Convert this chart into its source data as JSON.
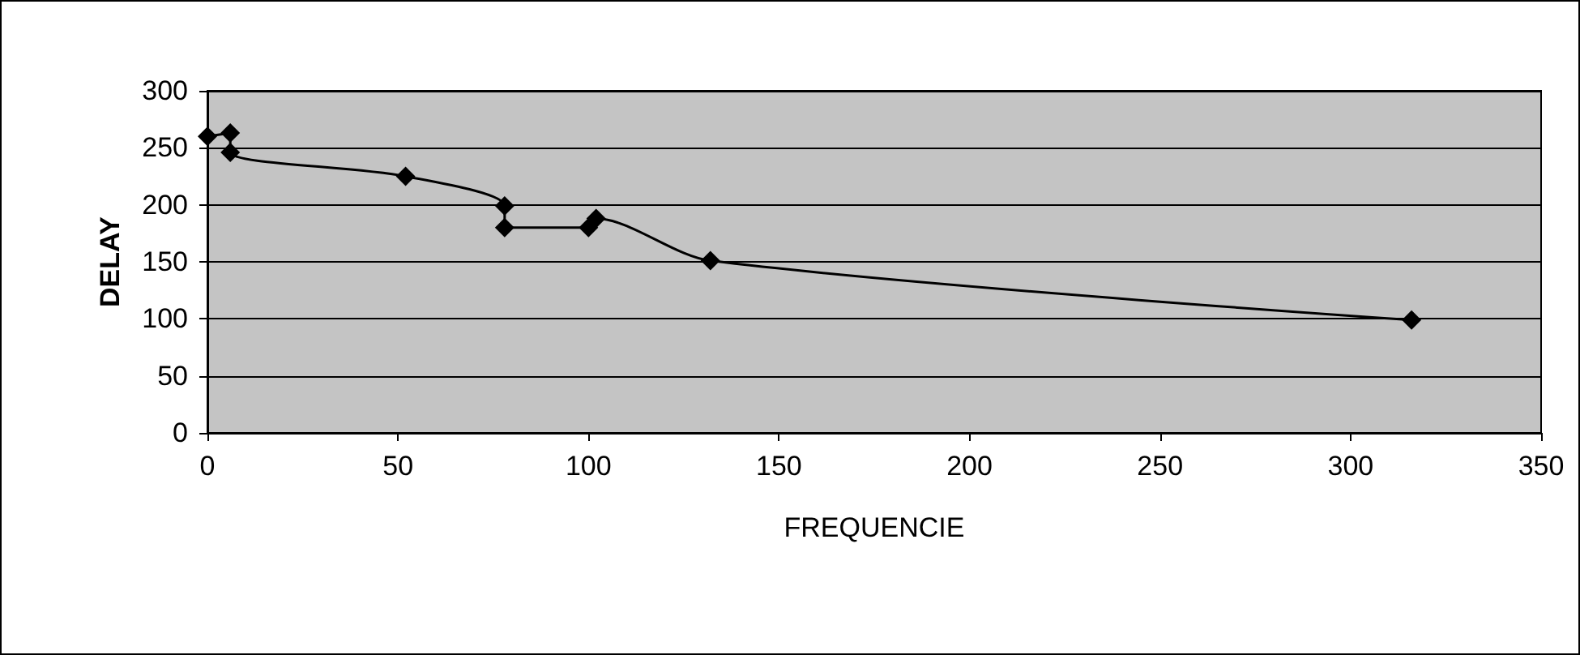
{
  "chart_data": {
    "type": "line",
    "xlabel": "FREQUENCIE",
    "ylabel": "DELAY",
    "series": [
      {
        "color": "#000000",
        "x": [
          0,
          6,
          6,
          52,
          78,
          78,
          100,
          102,
          132,
          316
        ],
        "values": [
          260,
          263,
          246,
          225,
          199,
          180,
          180,
          188,
          151,
          99
        ]
      }
    ],
    "xlim": [
      0,
      350
    ],
    "xticks": [
      0,
      50,
      100,
      150,
      200,
      250,
      300,
      350
    ],
    "ylim": [
      0,
      300
    ],
    "yticks": [
      0,
      50,
      100,
      150,
      200,
      250,
      300
    ],
    "grid": "y",
    "marker": "diamond",
    "line_style": "solid"
  }
}
